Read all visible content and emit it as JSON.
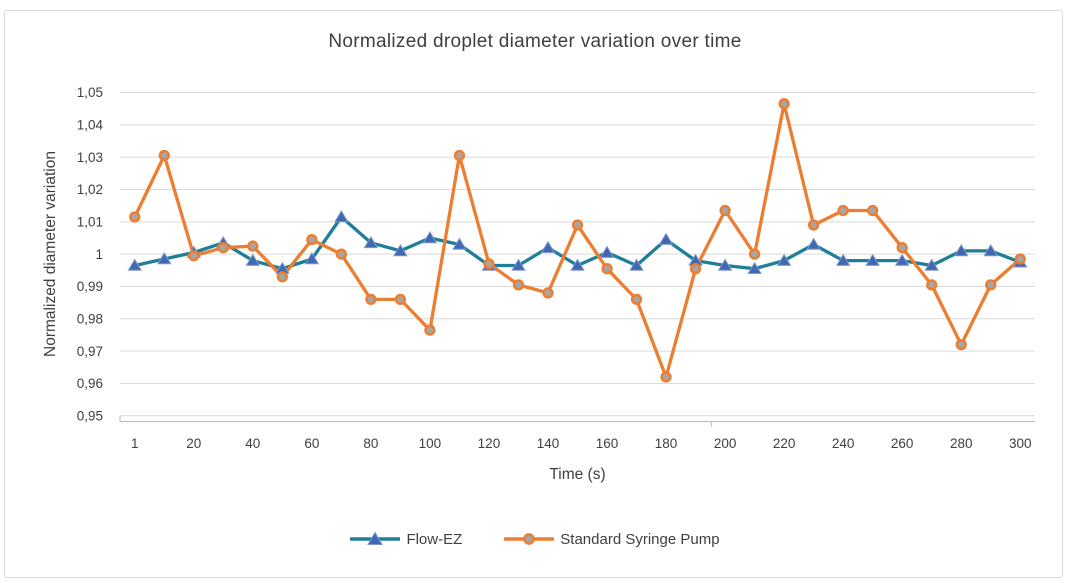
{
  "chart": {
    "title": "Normalized droplet diameter variation over time",
    "x_axis_title": "Time (s)",
    "y_axis_title": "Normalized diameter variation"
  },
  "chart_data": {
    "type": "line",
    "title": "Normalized droplet diameter variation over time",
    "xlabel": "Time (s)",
    "ylabel": "Normalized diameter variation",
    "ylim": [
      0.95,
      1.05
    ],
    "grid": true,
    "legend_position": "bottom",
    "decimal_separator": ",",
    "categories": [
      1,
      10,
      20,
      30,
      40,
      50,
      60,
      70,
      80,
      90,
      100,
      110,
      120,
      130,
      140,
      150,
      160,
      170,
      180,
      190,
      200,
      210,
      220,
      230,
      240,
      250,
      260,
      270,
      280,
      290,
      300
    ],
    "x_tick_labels": [
      "1",
      "20",
      "40",
      "60",
      "80",
      "100",
      "120",
      "140",
      "160",
      "180",
      "200",
      "220",
      "240",
      "260",
      "280",
      "300"
    ],
    "x_tick_indices": [
      0,
      2,
      4,
      6,
      8,
      10,
      12,
      14,
      16,
      18,
      20,
      22,
      24,
      26,
      28,
      30
    ],
    "y_ticks": [
      {
        "value": 1.05,
        "label": "1,05"
      },
      {
        "value": 1.04,
        "label": "1,04"
      },
      {
        "value": 1.03,
        "label": "1,03"
      },
      {
        "value": 1.02,
        "label": "1,02"
      },
      {
        "value": 1.01,
        "label": "1,01"
      },
      {
        "value": 1.0,
        "label": "1"
      },
      {
        "value": 0.99,
        "label": "0,99"
      },
      {
        "value": 0.98,
        "label": "0,98"
      },
      {
        "value": 0.97,
        "label": "0,97"
      },
      {
        "value": 0.96,
        "label": "0,96"
      },
      {
        "value": 0.95,
        "label": "0,95"
      }
    ],
    "series": [
      {
        "name": "Flow-EZ",
        "marker": "triangle",
        "line_color": "#1F7E98",
        "marker_fill": "#4169B1",
        "marker_border": "#8096CE",
        "values": [
          0.9965,
          0.9985,
          1.0005,
          1.0035,
          0.998,
          0.9955,
          0.9985,
          1.0115,
          1.0035,
          1.001,
          1.005,
          1.003,
          0.9965,
          0.9965,
          1.002,
          0.9965,
          1.0005,
          0.9965,
          1.0045,
          0.998,
          0.9965,
          0.9955,
          0.998,
          1.003,
          0.998,
          0.998,
          0.998,
          0.9965,
          1.001,
          1.001,
          0.9975
        ]
      },
      {
        "name": "Standard Syringe Pump",
        "marker": "circle",
        "line_color": "#ED7D31",
        "marker_fill": "#A6A6A6",
        "marker_border": "#ED7D31",
        "values": [
          1.0115,
          1.0305,
          0.9995,
          1.002,
          1.0025,
          0.993,
          1.0045,
          1.0,
          0.986,
          0.986,
          0.9765,
          1.0305,
          0.997,
          0.9905,
          0.988,
          1.009,
          0.9955,
          0.986,
          0.962,
          0.9955,
          1.0135,
          1.0,
          1.0465,
          1.009,
          1.0135,
          1.0135,
          1.002,
          0.9905,
          0.972,
          0.9905,
          0.9985
        ]
      }
    ],
    "axis_colors": {
      "gridline": "#D9D9D9",
      "axis_line": "#BFBFBF",
      "text": "#3F3F3F"
    }
  }
}
